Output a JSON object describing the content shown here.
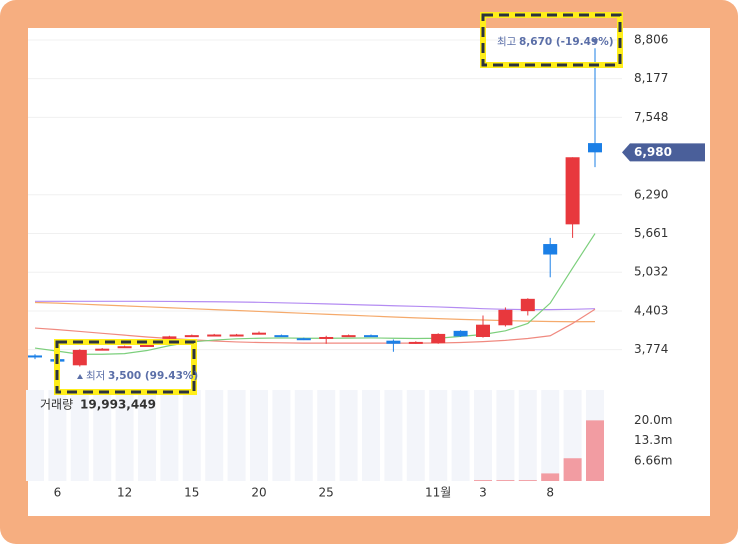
{
  "chart_data": {
    "type": "candlestick",
    "categories": [
      null,
      "6",
      null,
      null,
      "12",
      null,
      null,
      "15",
      null,
      null,
      "20",
      null,
      null,
      "25",
      null,
      null,
      null,
      null,
      "11월",
      null,
      "3",
      null,
      null,
      "8",
      null,
      null
    ],
    "open": [
      3680,
      3620,
      3520,
      3780,
      3820,
      3840,
      3950,
      3990,
      4000,
      4000,
      4030,
      4010,
      3960,
      3960,
      3990,
      4010,
      3920,
      3880,
      3880,
      4080,
      3980,
      4170,
      4400,
      5490,
      5810,
      7130
    ],
    "close": [
      3660,
      3580,
      3770,
      3790,
      3830,
      3850,
      3990,
      4010,
      4020,
      4020,
      4050,
      3990,
      3940,
      3980,
      4010,
      3990,
      3870,
      3900,
      4030,
      3990,
      4180,
      4420,
      4600,
      5320,
      6900,
      6980
    ],
    "high": [
      3700,
      3640,
      3780,
      3800,
      3840,
      3860,
      4000,
      4020,
      4030,
      4030,
      4070,
      4020,
      3970,
      4000,
      4020,
      4020,
      3940,
      3910,
      4040,
      4090,
      4330,
      4460,
      4610,
      5590,
      6900,
      8670
    ],
    "low": [
      3620,
      3560,
      3500,
      3770,
      3810,
      3830,
      3940,
      3980,
      3990,
      3990,
      4020,
      3980,
      3930,
      3870,
      3980,
      3980,
      3740,
      3870,
      3870,
      3980,
      3970,
      4150,
      4330,
      4950,
      5590,
      6740
    ],
    "up_color": "#e8383d",
    "down_color": "#1b7fe6",
    "moving_averages": [
      {
        "color": "#b48cf2",
        "values": [
          4560,
          4560,
          4560,
          4560,
          4560,
          4560,
          4558,
          4555,
          4552,
          4548,
          4543,
          4535,
          4527,
          4518,
          4508,
          4498,
          4488,
          4478,
          4468,
          4455,
          4440,
          4430,
          4425,
          4425,
          4430,
          4440
        ]
      },
      {
        "color": "#f5aa6c",
        "values": [
          4540,
          4530,
          4515,
          4500,
          4485,
          4470,
          4455,
          4440,
          4425,
          4410,
          4395,
          4380,
          4365,
          4350,
          4335,
          4320,
          4305,
          4290,
          4278,
          4266,
          4256,
          4246,
          4238,
          4232,
          4228,
          4230
        ]
      },
      {
        "color": "#f08a80",
        "values": [
          4125,
          4100,
          4070,
          4040,
          4010,
          3980,
          3955,
          3935,
          3915,
          3900,
          3890,
          3885,
          3880,
          3880,
          3880,
          3880,
          3880,
          3880,
          3882,
          3890,
          3905,
          3925,
          3955,
          4000,
          4200,
          4430
        ]
      },
      {
        "color": "#7ccf7c",
        "values": [
          3800,
          3750,
          3700,
          3700,
          3710,
          3760,
          3840,
          3900,
          3930,
          3950,
          3960,
          3965,
          3960,
          3960,
          3962,
          3965,
          3960,
          3955,
          3960,
          3990,
          4020,
          4080,
          4200,
          4530,
          5100,
          5660
        ]
      }
    ],
    "ylim": [
      3200,
      9000
    ],
    "yticks": [
      {
        "value": 8806,
        "label": "8,806"
      },
      {
        "value": 8177,
        "label": "8,177"
      },
      {
        "value": 7548,
        "label": "7,548"
      },
      {
        "value": 6290,
        "label": "6,290"
      },
      {
        "value": 5661,
        "label": "5,661"
      },
      {
        "value": 5032,
        "label": "5,032"
      },
      {
        "value": 4403,
        "label": "4,403"
      },
      {
        "value": 3774,
        "label": "3,774"
      }
    ],
    "current_price": {
      "value": 6980,
      "label": "6,980"
    },
    "high_annotation": {
      "label": "최고",
      "value": 8670,
      "value_label": "8,670 (-19.49%)"
    },
    "low_annotation": {
      "label": "최저",
      "value": 3500,
      "value_label": "3,500 (99.43%)"
    },
    "volume_title": "거래량",
    "volume_total": {
      "value": 19993449,
      "label": "19,993,449"
    },
    "volume": [
      0,
      0,
      0,
      0,
      0,
      0,
      0,
      0,
      0,
      0,
      0,
      0,
      0,
      0,
      0,
      0,
      0,
      0,
      0,
      0,
      300000,
      300000,
      300000,
      2500000,
      7500000,
      19993449
    ],
    "volume_color": "#f29ca2",
    "volume_ylim": [
      0,
      30000000
    ],
    "volume_yticks": [
      {
        "value": 20000000,
        "label": "20.0m"
      },
      {
        "value": 13300000,
        "label": "13.3m"
      },
      {
        "value": 6660000,
        "label": "6.66m"
      }
    ]
  }
}
